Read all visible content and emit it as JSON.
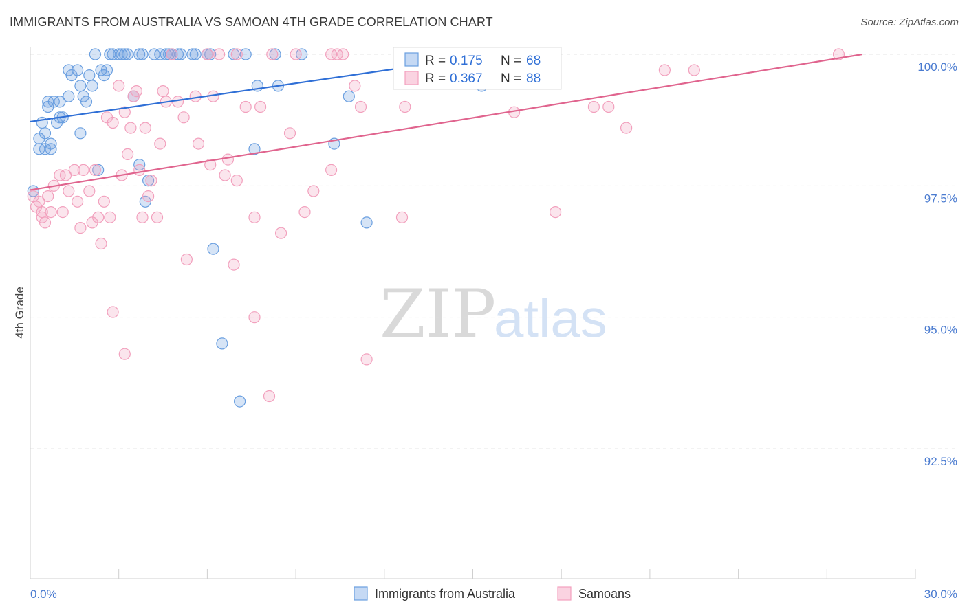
{
  "title": "IMMIGRANTS FROM AUSTRALIA VS SAMOAN 4TH GRADE CORRELATION CHART",
  "source": "Source: ZipAtlas.com",
  "watermark": {
    "part1": "ZIP",
    "part2": "atlas"
  },
  "chart_data": {
    "type": "scatter",
    "title": "IMMIGRANTS FROM AUSTRALIA VS SAMOAN 4TH GRADE CORRELATION CHART",
    "xlabel": "",
    "ylabel": "4th Grade",
    "xlim": [
      0,
      30
    ],
    "ylim": [
      90.0,
      100.4
    ],
    "x_tick_labels": [
      "0.0%",
      "30.0%"
    ],
    "y_ticks": [
      100.0,
      97.5,
      95.0,
      92.5
    ],
    "y_tick_labels": [
      "100.0%",
      "97.5%",
      "95.0%",
      "92.5%"
    ],
    "grid": true,
    "legend": {
      "position": "top-center",
      "entries": [
        {
          "r_label": "R =",
          "r_value": "0.175",
          "n_label": "N =",
          "n_value": "68"
        },
        {
          "r_label": "R =",
          "r_value": "0.367",
          "n_label": "N =",
          "n_value": "88"
        }
      ]
    },
    "series": [
      {
        "name": "Immigrants from Australia",
        "color": "#6a9fe0",
        "line_color": "#2f6fd6",
        "trend": {
          "x": [
            0,
            14.8
          ],
          "y": [
            98.72,
            99.92
          ]
        },
        "points": [
          [
            0.1,
            97.4
          ],
          [
            0.3,
            98.4
          ],
          [
            0.3,
            98.2
          ],
          [
            0.4,
            98.7
          ],
          [
            0.5,
            98.5
          ],
          [
            0.5,
            98.2
          ],
          [
            0.6,
            99.1
          ],
          [
            0.6,
            99.0
          ],
          [
            0.7,
            98.3
          ],
          [
            0.7,
            98.2
          ],
          [
            0.8,
            99.1
          ],
          [
            0.9,
            98.7
          ],
          [
            1.0,
            98.8
          ],
          [
            1.0,
            99.1
          ],
          [
            1.1,
            98.8
          ],
          [
            1.3,
            99.2
          ],
          [
            1.3,
            99.7
          ],
          [
            1.4,
            99.6
          ],
          [
            1.6,
            99.7
          ],
          [
            1.7,
            98.5
          ],
          [
            1.7,
            99.4
          ],
          [
            1.8,
            99.2
          ],
          [
            1.9,
            99.1
          ],
          [
            2.0,
            99.6
          ],
          [
            2.1,
            99.4
          ],
          [
            2.2,
            100.0
          ],
          [
            2.3,
            97.8
          ],
          [
            2.4,
            99.7
          ],
          [
            2.5,
            99.6
          ],
          [
            2.6,
            99.7
          ],
          [
            2.7,
            100.0
          ],
          [
            2.8,
            100.0
          ],
          [
            3.0,
            100.0
          ],
          [
            3.1,
            100.0
          ],
          [
            3.2,
            100.0
          ],
          [
            3.3,
            100.0
          ],
          [
            3.5,
            99.2
          ],
          [
            3.7,
            97.9
          ],
          [
            3.7,
            100.0
          ],
          [
            3.8,
            100.0
          ],
          [
            3.9,
            97.2
          ],
          [
            4.0,
            97.6
          ],
          [
            4.2,
            100.0
          ],
          [
            4.4,
            100.0
          ],
          [
            4.6,
            100.0
          ],
          [
            4.7,
            100.0
          ],
          [
            4.8,
            100.0
          ],
          [
            5.0,
            100.0
          ],
          [
            5.1,
            100.0
          ],
          [
            5.5,
            100.0
          ],
          [
            5.6,
            100.0
          ],
          [
            6.0,
            100.0
          ],
          [
            6.1,
            100.0
          ],
          [
            6.2,
            96.3
          ],
          [
            6.5,
            94.5
          ],
          [
            6.9,
            100.0
          ],
          [
            7.1,
            93.4
          ],
          [
            7.3,
            100.0
          ],
          [
            7.6,
            98.2
          ],
          [
            7.7,
            99.4
          ],
          [
            8.3,
            100.0
          ],
          [
            8.4,
            99.4
          ],
          [
            9.2,
            100.0
          ],
          [
            10.3,
            98.3
          ],
          [
            10.8,
            99.2
          ],
          [
            11.4,
            96.8
          ],
          [
            14.9,
            100.0
          ],
          [
            15.3,
            99.4
          ]
        ]
      },
      {
        "name": "Samoans",
        "color": "#f2a0bd",
        "line_color": "#e0648e",
        "trend": {
          "x": [
            0,
            28.2
          ],
          "y": [
            97.42,
            100.0
          ]
        },
        "points": [
          [
            0.1,
            97.3
          ],
          [
            0.2,
            97.1
          ],
          [
            0.3,
            97.2
          ],
          [
            0.4,
            97.0
          ],
          [
            0.4,
            96.9
          ],
          [
            0.5,
            96.8
          ],
          [
            0.6,
            97.3
          ],
          [
            0.7,
            97.0
          ],
          [
            0.8,
            97.5
          ],
          [
            1.0,
            97.7
          ],
          [
            1.1,
            97.0
          ],
          [
            1.2,
            97.7
          ],
          [
            1.3,
            97.4
          ],
          [
            1.5,
            97.8
          ],
          [
            1.6,
            97.2
          ],
          [
            1.7,
            96.7
          ],
          [
            1.8,
            97.8
          ],
          [
            2.0,
            97.4
          ],
          [
            2.1,
            96.8
          ],
          [
            2.2,
            97.8
          ],
          [
            2.3,
            96.9
          ],
          [
            2.4,
            96.4
          ],
          [
            2.5,
            97.2
          ],
          [
            2.6,
            98.8
          ],
          [
            2.7,
            96.9
          ],
          [
            2.8,
            98.7
          ],
          [
            2.8,
            95.1
          ],
          [
            3.0,
            99.4
          ],
          [
            3.1,
            97.7
          ],
          [
            3.2,
            98.9
          ],
          [
            3.2,
            94.3
          ],
          [
            3.3,
            98.1
          ],
          [
            3.4,
            98.6
          ],
          [
            3.5,
            99.2
          ],
          [
            3.6,
            99.3
          ],
          [
            3.7,
            97.8
          ],
          [
            3.8,
            96.9
          ],
          [
            3.9,
            98.6
          ],
          [
            4.0,
            97.3
          ],
          [
            4.1,
            97.6
          ],
          [
            4.3,
            96.9
          ],
          [
            4.4,
            98.3
          ],
          [
            4.5,
            99.3
          ],
          [
            4.6,
            99.1
          ],
          [
            4.8,
            100.0
          ],
          [
            5.0,
            99.1
          ],
          [
            5.2,
            98.8
          ],
          [
            5.3,
            96.1
          ],
          [
            5.6,
            99.2
          ],
          [
            5.7,
            98.3
          ],
          [
            6.0,
            100.0
          ],
          [
            6.1,
            97.9
          ],
          [
            6.2,
            99.2
          ],
          [
            6.4,
            100.0
          ],
          [
            6.6,
            97.7
          ],
          [
            6.7,
            98.0
          ],
          [
            6.9,
            96.0
          ],
          [
            7.0,
            100.0
          ],
          [
            7.0,
            97.6
          ],
          [
            7.3,
            99.0
          ],
          [
            7.6,
            96.9
          ],
          [
            7.6,
            95.0
          ],
          [
            7.8,
            99.0
          ],
          [
            8.1,
            93.5
          ],
          [
            8.2,
            100.0
          ],
          [
            8.5,
            96.6
          ],
          [
            8.8,
            98.5
          ],
          [
            9.0,
            100.0
          ],
          [
            9.3,
            97.0
          ],
          [
            9.6,
            97.4
          ],
          [
            10.2,
            100.0
          ],
          [
            10.4,
            100.0
          ],
          [
            10.6,
            100.0
          ],
          [
            10.2,
            97.8
          ],
          [
            11.0,
            99.4
          ],
          [
            11.2,
            99.0
          ],
          [
            11.4,
            94.2
          ],
          [
            12.6,
            96.9
          ],
          [
            12.7,
            99.0
          ],
          [
            13.2,
            100.0
          ],
          [
            16.4,
            98.9
          ],
          [
            17.8,
            97.0
          ],
          [
            19.1,
            99.0
          ],
          [
            19.6,
            99.0
          ],
          [
            20.2,
            98.6
          ],
          [
            21.5,
            99.7
          ],
          [
            22.5,
            99.7
          ],
          [
            27.4,
            100.0
          ]
        ]
      }
    ]
  },
  "bottom_legend": [
    {
      "label": "Immigrants from Australia",
      "color": "#6a9fe0",
      "fill": "#c5d9f4"
    },
    {
      "label": "Samoans",
      "color": "#f2a0bd",
      "fill": "#fad3e1"
    }
  ]
}
